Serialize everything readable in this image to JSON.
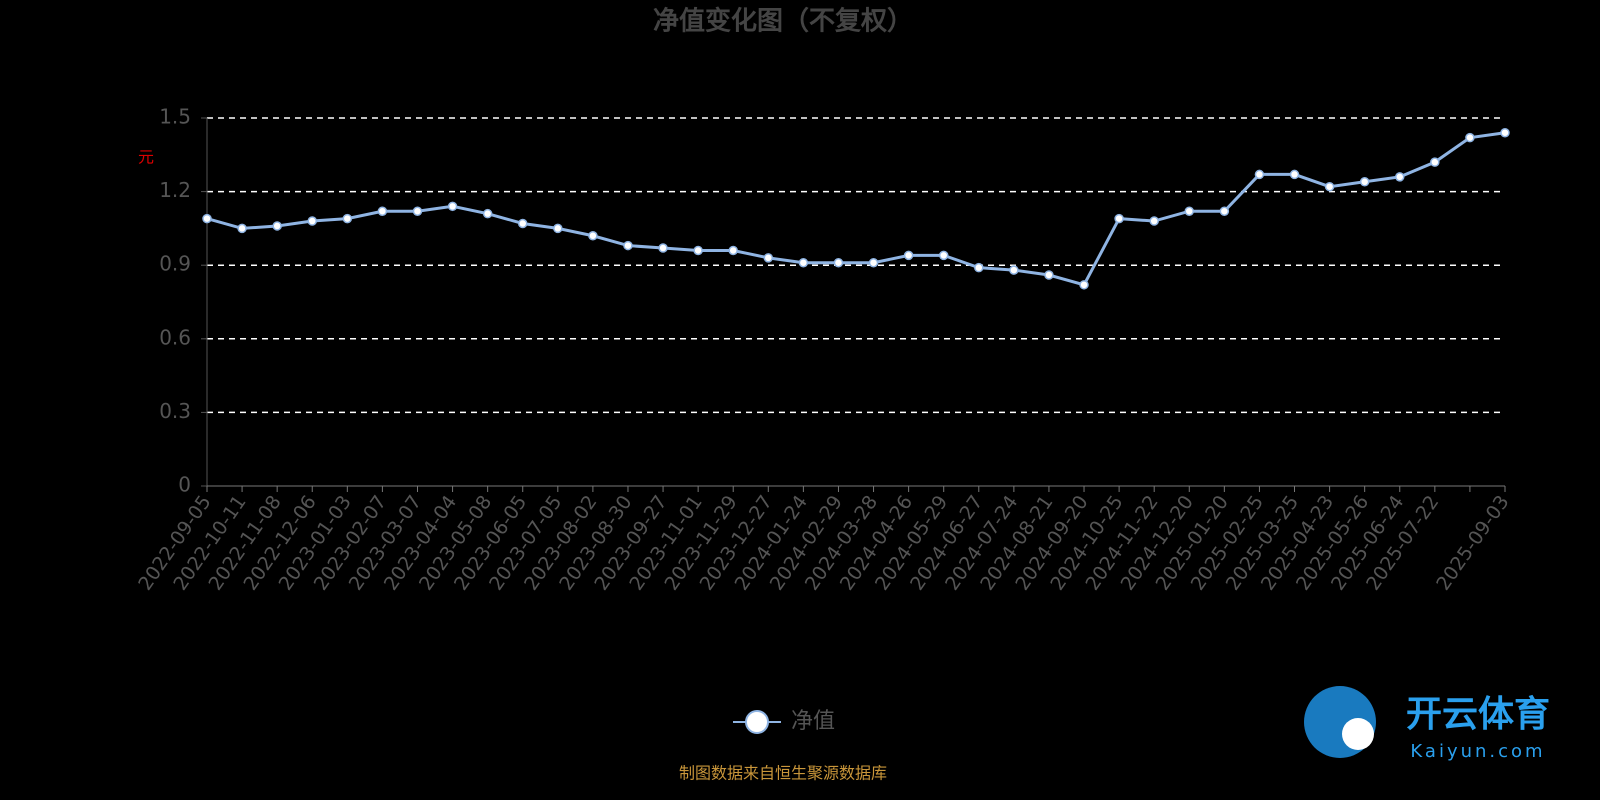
{
  "chart_data": {
    "type": "line",
    "title": "净值变化图（不复权）",
    "y_label": "元",
    "categories": [
      "2022-09-05",
      "2022-10-11",
      "2022-11-08",
      "2022-12-06",
      "2023-01-03",
      "2023-02-07",
      "2023-03-07",
      "2023-04-04",
      "2023-05-08",
      "2023-06-05",
      "2023-07-05",
      "2023-08-02",
      "2023-08-30",
      "2023-09-27",
      "2023-11-01",
      "2023-11-29",
      "2023-12-27",
      "2024-01-24",
      "2024-02-29",
      "2024-03-28",
      "2024-04-26",
      "2024-05-29",
      "2024-06-27",
      "2024-07-24",
      "2024-08-21",
      "2024-09-20",
      "2024-10-25",
      "2024-11-22",
      "2024-12-20",
      "2025-01-20",
      "2025-02-25",
      "2025-03-25",
      "2025-04-23",
      "2025-05-26",
      "2025-06-24",
      "2025-07-22",
      null,
      "2025-09-03"
    ],
    "series": [
      {
        "name": "净值",
        "color": "#8fb4e3",
        "values": [
          1.09,
          1.05,
          1.06,
          1.08,
          1.09,
          1.12,
          1.12,
          1.14,
          1.11,
          1.07,
          1.05,
          1.02,
          0.98,
          0.97,
          0.96,
          0.96,
          0.93,
          0.91,
          0.91,
          0.91,
          0.94,
          0.94,
          0.89,
          0.88,
          0.86,
          0.82,
          1.09,
          1.08,
          1.12,
          1.12,
          1.27,
          1.27,
          1.22,
          1.24,
          1.26,
          1.32,
          1.42,
          1.44
        ]
      }
    ],
    "ylim": [
      0,
      1.5
    ],
    "yticks": [
      0,
      0.3,
      0.6,
      0.9,
      1.2,
      1.5
    ],
    "grid": true,
    "source": "制图数据来自恒生聚源数据库"
  },
  "watermark": {
    "name": "开云体育",
    "site": "Kaiyun.com"
  }
}
